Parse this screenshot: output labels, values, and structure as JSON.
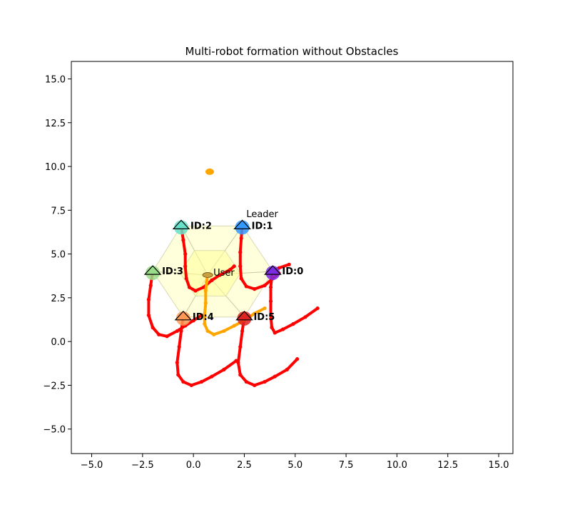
{
  "chart_data": {
    "type": "scatter",
    "title": "Multi-robot formation without Obstacles",
    "xlabel": "",
    "ylabel": "",
    "xlim": [
      -6.0,
      15.7
    ],
    "ylim": [
      -6.4,
      16.0
    ],
    "xticks": [
      -5.0,
      -2.5,
      0.0,
      2.5,
      5.0,
      7.5,
      10.0,
      12.5,
      15.0
    ],
    "xtick_labels": [
      "−5.0",
      "−2.5",
      "0.0",
      "2.5",
      "5.0",
      "7.5",
      "10.0",
      "12.5",
      "15.0"
    ],
    "yticks": [
      -5.0,
      -2.5,
      0.0,
      2.5,
      5.0,
      7.5,
      10.0,
      12.5,
      15.0
    ],
    "ytick_labels": [
      "−5.0",
      "−2.5",
      "0.0",
      "2.5",
      "5.0",
      "7.5",
      "10.0",
      "12.5",
      "15.0"
    ],
    "grid": false,
    "colors": {
      "robot_path": "#ff0000",
      "user_path": "#ffa500",
      "goal": "#ffa500",
      "formation_fill": "#ffff99",
      "formation_edge": "#c8c8a0"
    },
    "goal_point": {
      "x": 0.8,
      "y": 9.7
    },
    "user": {
      "label": "User",
      "x": 0.7,
      "y": 3.8,
      "path": [
        [
          3.5,
          1.9
        ],
        [
          3.0,
          1.6
        ],
        [
          2.5,
          1.2
        ],
        [
          2.0,
          0.9
        ],
        [
          1.5,
          0.6
        ],
        [
          1.0,
          0.4
        ],
        [
          0.7,
          0.6
        ],
        [
          0.55,
          1.0
        ],
        [
          0.55,
          1.5
        ],
        [
          0.6,
          2.2
        ],
        [
          0.6,
          2.9
        ],
        [
          0.65,
          3.4
        ],
        [
          0.7,
          3.8
        ]
      ]
    },
    "leader_label": {
      "text": "Leader",
      "x": 2.6,
      "y": 7.1
    },
    "robots": [
      {
        "id_label": "ID:0",
        "x": 3.9,
        "y": 4.0,
        "color": "#7b2be2",
        "path": [
          [
            6.1,
            1.9
          ],
          [
            5.5,
            1.4
          ],
          [
            4.9,
            1.0
          ],
          [
            4.4,
            0.7
          ],
          [
            4.0,
            0.5
          ],
          [
            3.85,
            0.8
          ],
          [
            3.8,
            1.5
          ],
          [
            3.8,
            2.3
          ],
          [
            3.8,
            3.1
          ],
          [
            3.85,
            3.7
          ],
          [
            3.9,
            4.0
          ],
          [
            4.2,
            4.2
          ],
          [
            4.7,
            4.4
          ]
        ]
      },
      {
        "id_label": "ID:1",
        "x": 2.4,
        "y": 6.6,
        "color": "#3399ff",
        "path": [
          [
            2.4,
            6.6
          ],
          [
            2.35,
            5.9
          ],
          [
            2.3,
            5.1
          ],
          [
            2.3,
            4.3
          ],
          [
            2.35,
            3.6
          ],
          [
            2.6,
            3.15
          ],
          [
            3.0,
            3.0
          ],
          [
            3.5,
            3.2
          ],
          [
            3.9,
            3.6
          ],
          [
            4.2,
            3.9
          ]
        ]
      },
      {
        "id_label": "ID:2",
        "x": -0.6,
        "y": 6.6,
        "color": "#66e0c8",
        "path": [
          [
            -0.6,
            6.6
          ],
          [
            -0.5,
            5.8
          ],
          [
            -0.4,
            5.0
          ],
          [
            -0.4,
            4.3
          ],
          [
            -0.35,
            3.6
          ],
          [
            -0.2,
            3.1
          ],
          [
            0.1,
            2.9
          ],
          [
            0.5,
            3.1
          ],
          [
            0.9,
            3.5
          ],
          [
            1.3,
            3.8
          ],
          [
            1.8,
            4.1
          ],
          [
            2.0,
            4.3
          ]
        ]
      },
      {
        "id_label": "ID:3",
        "x": -2.0,
        "y": 4.0,
        "color": "#99dd88",
        "path": [
          [
            -2.0,
            4.0
          ],
          [
            -2.1,
            3.2
          ],
          [
            -2.2,
            2.4
          ],
          [
            -2.2,
            1.5
          ],
          [
            -2.0,
            0.8
          ],
          [
            -1.7,
            0.4
          ],
          [
            -1.3,
            0.3
          ],
          [
            -0.8,
            0.6
          ],
          [
            -0.4,
            0.9
          ],
          [
            0.0,
            1.2
          ],
          [
            0.4,
            1.5
          ]
        ]
      },
      {
        "id_label": "ID:4",
        "x": -0.5,
        "y": 1.4,
        "color": "#ff9955",
        "path": [
          [
            -0.5,
            1.4
          ],
          [
            -0.6,
            0.6
          ],
          [
            -0.7,
            -0.3
          ],
          [
            -0.8,
            -1.2
          ],
          [
            -0.75,
            -1.9
          ],
          [
            -0.5,
            -2.3
          ],
          [
            -0.1,
            -2.5
          ],
          [
            0.4,
            -2.3
          ],
          [
            0.9,
            -2.0
          ],
          [
            1.5,
            -1.6
          ],
          [
            2.1,
            -1.1
          ]
        ]
      },
      {
        "id_label": "ID:5",
        "x": 2.5,
        "y": 1.4,
        "color": "#dd2222",
        "path": [
          [
            2.5,
            1.4
          ],
          [
            2.4,
            0.6
          ],
          [
            2.3,
            -0.3
          ],
          [
            2.2,
            -1.2
          ],
          [
            2.3,
            -1.9
          ],
          [
            2.6,
            -2.3
          ],
          [
            3.0,
            -2.5
          ],
          [
            3.5,
            -2.3
          ],
          [
            4.0,
            -2.0
          ],
          [
            4.6,
            -1.6
          ],
          [
            5.1,
            -1.0
          ]
        ]
      }
    ]
  }
}
